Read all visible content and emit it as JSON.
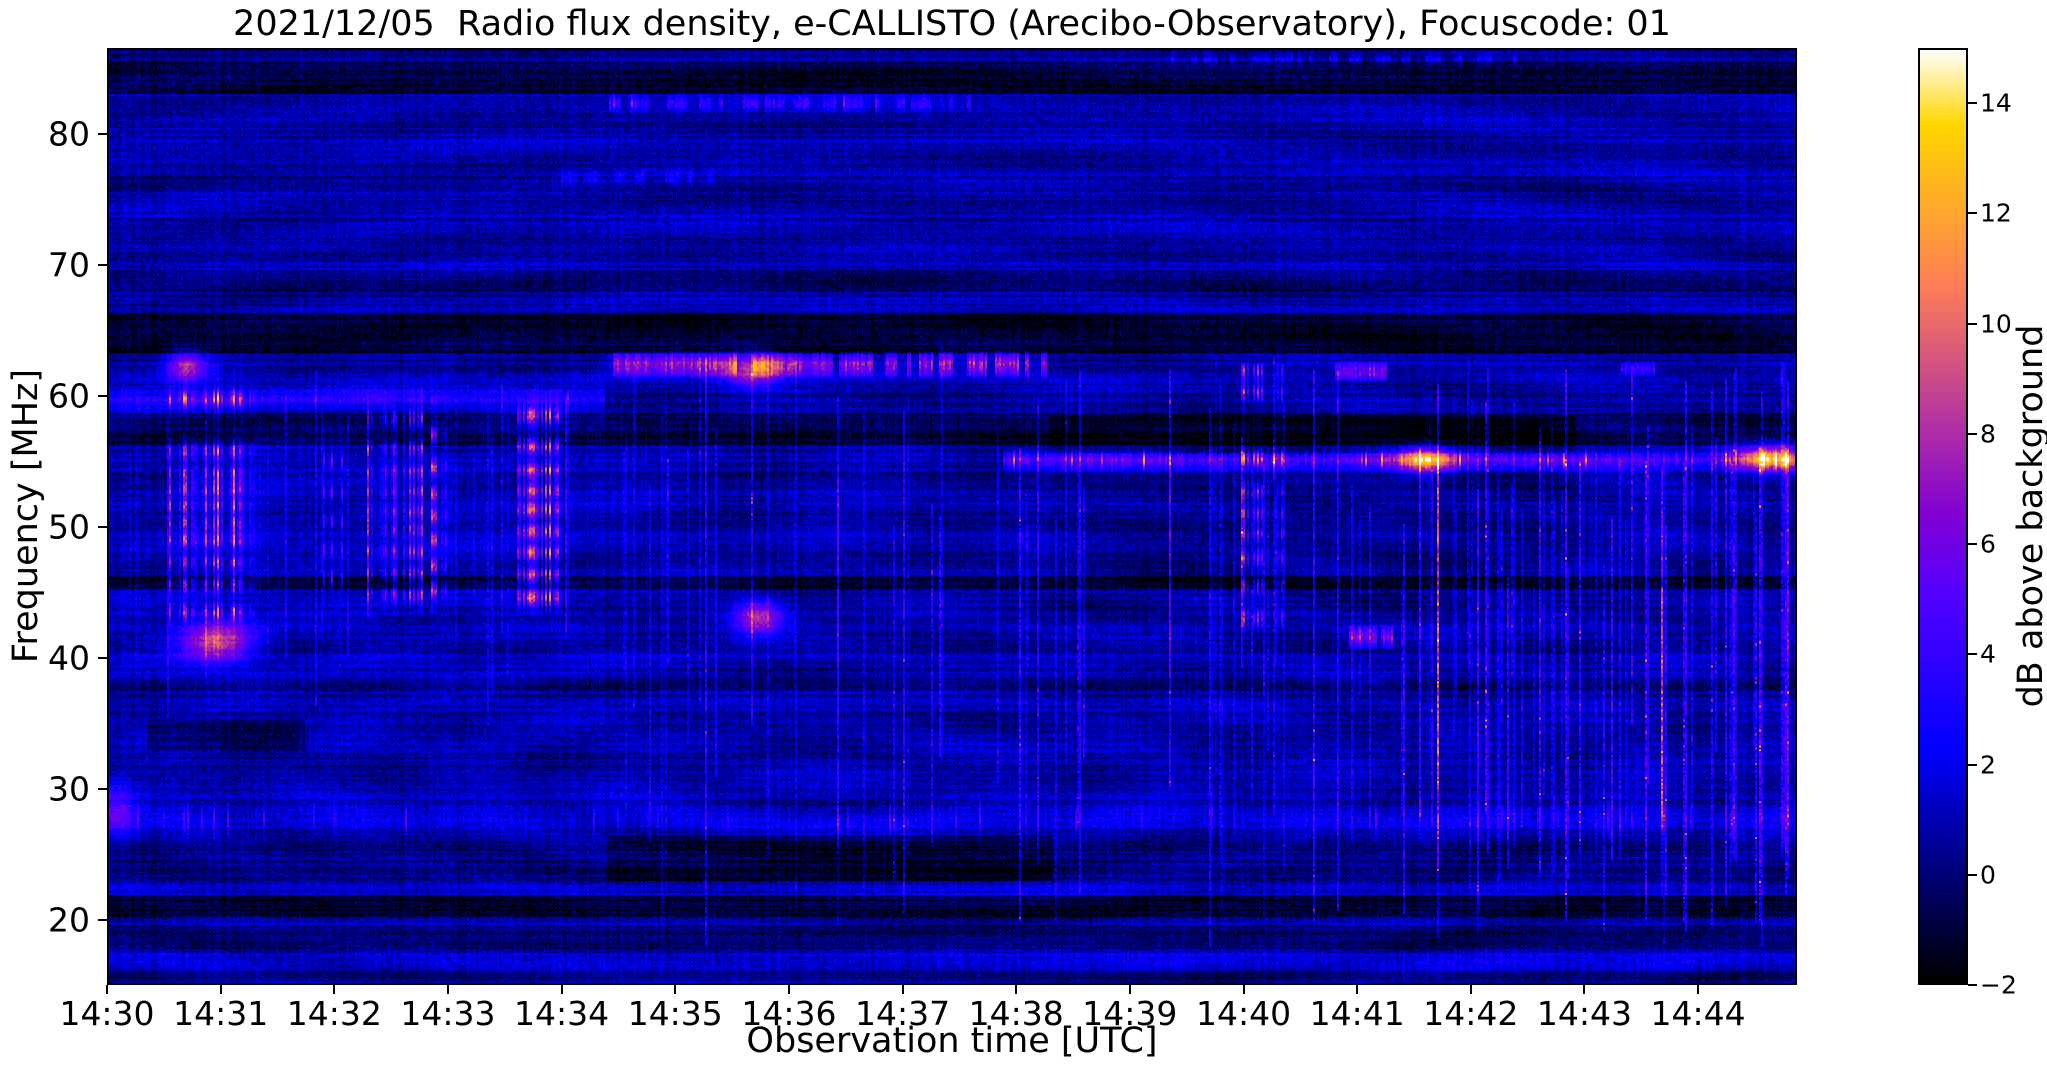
{
  "figure": {
    "background": "#ffffff",
    "text_color": "#000000"
  },
  "chart_data": {
    "type": "heatmap",
    "title": "2021/12/05  Radio flux density, e-CALLISTO (Arecibo-Observatory), Focuscode: 01",
    "xlabel": "Observation time [UTC]",
    "ylabel": "Frequency [MHz]",
    "x_ticks": [
      "14:30",
      "14:31",
      "14:32",
      "14:33",
      "14:34",
      "14:35",
      "14:36",
      "14:37",
      "14:38",
      "14:39",
      "14:40",
      "14:41",
      "14:42",
      "14:43",
      "14:44"
    ],
    "x_tick_interval_min": 1,
    "x_range_min": [
      0,
      14.87
    ],
    "y_ticks": [
      80,
      70,
      60,
      50,
      40,
      30,
      20
    ],
    "y_range_mhz": [
      15.0,
      86.6
    ],
    "grid": false,
    "colorbar": {
      "label": "dB above background",
      "ticks": [
        14,
        12,
        10,
        8,
        6,
        4,
        2,
        0,
        -2
      ],
      "vmin": -2,
      "vmax": 15,
      "colormap": "gnuplot2"
    },
    "features": {
      "base_level_db": 0.75,
      "noise_db": 0.8,
      "row_texture_db": 0.55,
      "col_texture_db": 0.3,
      "ripples": [
        {
          "cx": 0.42,
          "cy": 0.78,
          "amp": 0.3,
          "scale": 0.16
        },
        {
          "cx": 0.12,
          "cy": 0.45,
          "amp": 0.25,
          "scale": 0.1
        },
        {
          "cx": 0.8,
          "cy": 0.5,
          "amp": 0.22,
          "scale": 0.13
        }
      ],
      "h_bands": [
        {
          "f0": 20.3,
          "f1": 21.7,
          "dv": -2.4
        },
        {
          "f0": 17.6,
          "f1": 19.4,
          "dv": -0.9
        },
        {
          "f0": 15.0,
          "f1": 16.2,
          "dv": -0.7
        },
        {
          "f0": 23.0,
          "f1": 26.2,
          "dv": -0.8
        },
        {
          "f0": 23.0,
          "f1": 26.2,
          "dv": -1.4,
          "t0": 4.4,
          "t1": 8.3
        },
        {
          "f0": 33.0,
          "f1": 35.2,
          "dv": -1.4,
          "t0": 0.35,
          "t1": 1.7
        },
        {
          "f0": 37.6,
          "f1": 38.4,
          "dv": -0.8
        },
        {
          "f0": 45.4,
          "f1": 46.2,
          "dv": -2.0
        },
        {
          "f0": 56.4,
          "f1": 58.6,
          "dv": -1.6
        },
        {
          "f0": 55.8,
          "f1": 58.4,
          "dv": -1.2,
          "t0": 8.3,
          "t1": 12.9
        },
        {
          "f0": 63.6,
          "f1": 66.3,
          "dv": -2.2
        },
        {
          "f0": 68.3,
          "f1": 69.6,
          "dv": -0.9
        },
        {
          "f0": 83.5,
          "f1": 85.6,
          "dv": -2.0
        },
        {
          "f0": 35.0,
          "f1": 62.0,
          "dv": 0.35,
          "t0": 0,
          "t1": 4.35
        },
        {
          "f0": 44.0,
          "f1": 54.0,
          "dv": -0.5,
          "t0": 8.3,
          "t1": 12.9
        }
      ],
      "bright_rows": [
        {
          "f": 59.9,
          "t0": 0,
          "t1": 4.35,
          "amp": 2.6,
          "width": 0.5
        },
        {
          "f": 55.2,
          "t0": 7.9,
          "t1": 14.87,
          "amp": 5.2,
          "width": 0.45,
          "speckle": 4.5
        },
        {
          "f": 27.6,
          "t0": 0,
          "t1": 14.87,
          "amp": 1.5,
          "width": 0.8,
          "speckle": 2.5
        },
        {
          "f": 22.4,
          "t0": 0,
          "t1": 14.87,
          "amp": 1.1,
          "width": 0.5
        },
        {
          "f": 16.8,
          "t0": 0,
          "t1": 14.87,
          "amp": 1.7,
          "width": 0.5
        },
        {
          "f": 82.6,
          "t0": 4.4,
          "t1": 7.6,
          "amp": 3.2,
          "width": 0.4,
          "dash": true,
          "speckle": 3
        },
        {
          "f": 76.9,
          "t0": 3.9,
          "t1": 5.3,
          "amp": 2.4,
          "width": 0.4,
          "dash": true
        },
        {
          "f": 86.0,
          "t0": 9.3,
          "t1": 12.4,
          "amp": 2.6,
          "width": 0.3,
          "dash": true
        }
      ],
      "striated_bands": [
        {
          "t0": 4.38,
          "t1": 8.25,
          "f0": 61.7,
          "f1": 63.4,
          "amp": 8.5
        },
        {
          "t0": 10.82,
          "t1": 11.25,
          "f0": 61.4,
          "f1": 62.6,
          "amp": 7.5
        },
        {
          "t0": 10.85,
          "t1": 11.3,
          "f0": 40.8,
          "f1": 42.3,
          "amp": 7.0
        },
        {
          "t0": 13.35,
          "t1": 13.6,
          "f0": 61.8,
          "f1": 62.6,
          "amp": 5.0
        }
      ],
      "burst_groups": [
        {
          "t0": 0.52,
          "t1": 1.28,
          "f0": 40.0,
          "f1": 62.5,
          "amp": 11.0,
          "col_density": 0.72,
          "rows": [
            43.5,
            45.6,
            47.3,
            49.0,
            50.3,
            51.6,
            52.9,
            54.1,
            55.8,
            59.8
          ]
        },
        {
          "t0": 1.9,
          "t1": 2.05,
          "f0": 44.0,
          "f1": 58.0,
          "amp": 6.0,
          "col_density": 0.5,
          "rows": [
            46.0,
            48.2,
            50.4,
            52.6,
            55.0
          ]
        },
        {
          "t0": 2.28,
          "t1": 2.76,
          "f0": 43.5,
          "f1": 60.5,
          "amp": 10.5,
          "col_density": 0.7,
          "rows": [
            44.8,
            46.4,
            48.1,
            49.8,
            51.2,
            52.7,
            54.2,
            56.0,
            58.3
          ]
        },
        {
          "t0": 2.84,
          "t1": 3.06,
          "f0": 43.5,
          "f1": 60.0,
          "amp": 8.5,
          "col_density": 0.6,
          "rows": [
            45.2,
            47.0,
            49.0,
            50.8,
            52.5,
            54.6,
            57.0
          ]
        },
        {
          "t0": 3.6,
          "t1": 3.98,
          "f0": 43.5,
          "f1": 60.5,
          "amp": 10.5,
          "col_density": 0.75,
          "rows": [
            44.6,
            46.3,
            48.0,
            49.7,
            51.3,
            52.8,
            54.3,
            56.2,
            58.5
          ]
        },
        {
          "t0": 9.98,
          "t1": 10.35,
          "f0": 42.0,
          "f1": 62.5,
          "amp": 9.5,
          "col_density": 0.65,
          "rows": [
            43.0,
            45.5,
            47.6,
            49.5,
            51.0,
            52.6,
            55.3,
            60.3,
            62.0
          ]
        }
      ],
      "blobs": [
        {
          "t": 0.07,
          "f": 28.2,
          "dt": 0.1,
          "df": 1.6,
          "amp": 4.0
        },
        {
          "t": 0.68,
          "f": 62.4,
          "dt": 0.12,
          "df": 0.8,
          "amp": 7.0
        },
        {
          "t": 0.95,
          "f": 41.3,
          "dt": 0.22,
          "df": 1.1,
          "amp": 8.0
        },
        {
          "t": 5.66,
          "f": 62.1,
          "dt": 0.18,
          "df": 0.9,
          "amp": 7.0
        },
        {
          "t": 5.72,
          "f": 43.1,
          "dt": 0.15,
          "df": 0.9,
          "amp": 7.5
        },
        {
          "t": 11.6,
          "f": 55.2,
          "dt": 0.18,
          "df": 0.7,
          "amp": 9.0
        },
        {
          "t": 14.63,
          "f": 55.3,
          "dt": 0.22,
          "df": 0.8,
          "amp": 8.5
        }
      ],
      "vlines": [
        {
          "t": 1.55,
          "f0": 40,
          "f1": 60,
          "amp": 2.5
        },
        {
          "t": 4.02,
          "f0": 42,
          "f1": 60,
          "amp": 3.0
        },
        {
          "t": 8.02,
          "f0": 20,
          "f1": 56,
          "amp": 4.0
        },
        {
          "t": 8.56,
          "f0": 22,
          "f1": 62,
          "amp": 3.5
        },
        {
          "t": 9.35,
          "f0": 30,
          "f1": 62,
          "amp": 4.0
        },
        {
          "t": 10.62,
          "f0": 20,
          "f1": 62,
          "amp": 4.5
        },
        {
          "t": 11.55,
          "f0": 28,
          "f1": 56,
          "amp": 5.0
        },
        {
          "t": 11.72,
          "f0": 30,
          "f1": 55,
          "amp": 4.0
        },
        {
          "t": 12.15,
          "f0": 25,
          "f1": 62,
          "amp": 3.5
        },
        {
          "t": 12.85,
          "f0": 20,
          "f1": 62,
          "amp": 5.5
        },
        {
          "t": 12.97,
          "f0": 25,
          "f1": 55,
          "amp": 4.0
        },
        {
          "t": 13.55,
          "f0": 20,
          "f1": 55,
          "amp": 5.0
        },
        {
          "t": 13.72,
          "f0": 22,
          "f1": 50,
          "amp": 4.5
        },
        {
          "t": 13.88,
          "f0": 20,
          "f1": 55,
          "amp": 4.0
        },
        {
          "t": 14.3,
          "f0": 25,
          "f1": 55,
          "amp": 3.5
        },
        {
          "t": 14.55,
          "f0": 20,
          "f1": 56,
          "amp": 5.5
        },
        {
          "t": 14.78,
          "f0": 22,
          "f1": 56,
          "amp": 5.0
        }
      ],
      "random_vlines": [
        {
          "count": 80,
          "t0": 4.4,
          "t1": 14.85,
          "f_lo": [
            18,
            40
          ],
          "f_hi": [
            50,
            64
          ],
          "amp": [
            1.2,
            4.0
          ]
        },
        {
          "count": 30,
          "t0": 11.3,
          "t1": 14.85,
          "f_lo": [
            18,
            30
          ],
          "f_hi": [
            45,
            63
          ],
          "amp": [
            2.0,
            5.0
          ]
        },
        {
          "count": 20,
          "t0": 0.1,
          "t1": 4.3,
          "f_lo": [
            35,
            45
          ],
          "f_hi": [
            55,
            62
          ],
          "amp": [
            1.0,
            2.6
          ]
        }
      ]
    }
  }
}
